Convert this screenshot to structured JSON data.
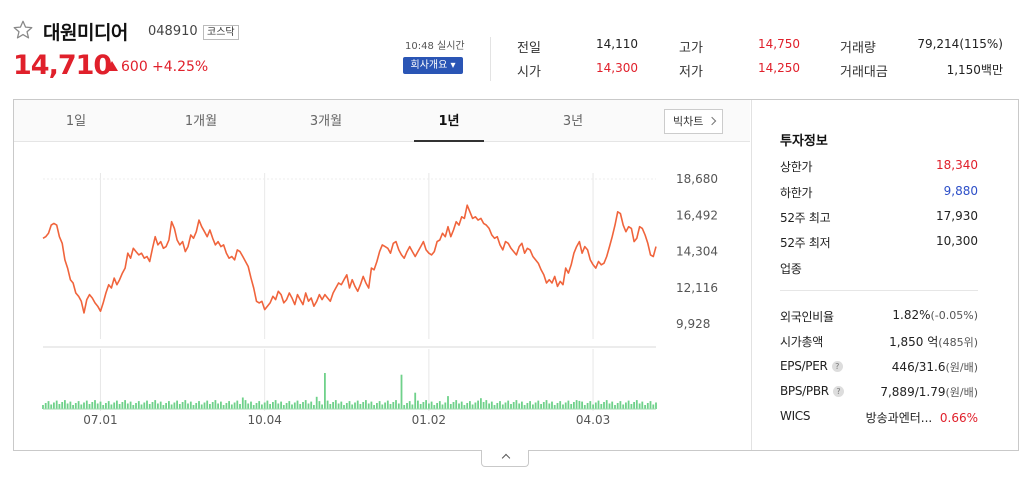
{
  "header": {
    "stock_name": "대원미디어",
    "stock_code": "048910",
    "market": "코스닥",
    "price": "14,710",
    "change": "600",
    "change_pct": "+4.25%",
    "realtime": "10:48 실시간",
    "company_button": "회사개요 ▾"
  },
  "quote": {
    "prev_close_label": "전일",
    "prev_close": "14,110",
    "open_label": "시가",
    "open": "14,300",
    "high_label": "고가",
    "high": "14,750",
    "low_label": "저가",
    "low": "14,250",
    "volume_label": "거래량",
    "volume": "79,214(115%)",
    "amount_label": "거래대금",
    "amount": "1,150백만"
  },
  "tabs": [
    {
      "label": "1일",
      "active": false
    },
    {
      "label": "1개월",
      "active": false
    },
    {
      "label": "3개월",
      "active": false
    },
    {
      "label": "1년",
      "active": true
    },
    {
      "label": "3년",
      "active": false
    }
  ],
  "bigchart_label": "빅차트",
  "info": {
    "title": "투자정보",
    "upper_limit_label": "상한가",
    "upper_limit": "18,340",
    "lower_limit_label": "하한가",
    "lower_limit": "9,880",
    "high52_label": "52주 최고",
    "high52": "17,930",
    "low52_label": "52주 최저",
    "low52": "10,300",
    "industry_label": "업종",
    "foreign_label": "외국인비율",
    "foreign_value": "1.82%",
    "foreign_change": "(-0.05%)",
    "mcap_label": "시가총액",
    "mcap_value": "1,850 억",
    "mcap_sub": "(485위)",
    "eps_label": "EPS/PER",
    "eps_value": "446/31.6",
    "eps_sub": "(원/배)",
    "bps_label": "BPS/PBR",
    "bps_value": "7,889/1.79",
    "bps_sub": "(원/배)",
    "wics_label": "WICS",
    "wics_value": "방송과엔터...",
    "wics_pct": "0.66%"
  },
  "chart_data": {
    "type": "line",
    "title": "",
    "y_ticks": [
      18680,
      16492,
      14304,
      12116,
      9928
    ],
    "ylim": [
      9928,
      18680
    ],
    "x_tick_labels": [
      "07.01",
      "10.04",
      "01.02",
      "04.03"
    ],
    "x_tick_index": [
      21,
      81,
      141,
      201
    ],
    "line_color": "#f0643c",
    "volume_color": "#6fd18a",
    "price": [
      15100,
      15200,
      15400,
      15900,
      16000,
      15900,
      15200,
      14800,
      13800,
      13300,
      12600,
      12400,
      11800,
      11600,
      11300,
      10600,
      11400,
      11700,
      11500,
      11200,
      11000,
      10700,
      11200,
      11800,
      12300,
      12100,
      12700,
      12300,
      12600,
      13000,
      13300,
      14200,
      13900,
      14500,
      14300,
      14100,
      14200,
      13900,
      14000,
      13700,
      14500,
      15200,
      14700,
      14900,
      14500,
      14600,
      15000,
      16100,
      15700,
      15000,
      14700,
      14900,
      14300,
      14600,
      15300,
      15100,
      15500,
      16200,
      15800,
      15500,
      15200,
      15600,
      15100,
      14700,
      14900,
      14600,
      14700,
      14200,
      13900,
      14000,
      13800,
      14400,
      14300,
      14000,
      13700,
      13400,
      12700,
      12100,
      11300,
      11200,
      11300,
      10800,
      11000,
      11200,
      11600,
      11400,
      11900,
      11700,
      11200,
      11400,
      11800,
      11500,
      11100,
      11700,
      11400,
      11100,
      11800,
      11300,
      11500,
      11000,
      11300,
      11700,
      11400,
      11700,
      11500,
      11300,
      11800,
      12100,
      12400,
      12300,
      12600,
      12900,
      12100,
      12600,
      12200,
      11900,
      12300,
      12800,
      12400,
      12100,
      13300,
      13200,
      13700,
      14300,
      14700,
      14600,
      14500,
      14200,
      14800,
      14900,
      14400,
      14100,
      13900,
      14300,
      14600,
      14300,
      14000,
      14300,
      14600,
      14900,
      14400,
      14200,
      14100,
      14300,
      14900,
      15000,
      15400,
      15200,
      15800,
      15200,
      15600,
      16100,
      15900,
      16400,
      16300,
      17100,
      16700,
      16300,
      16400,
      16200,
      16300,
      16000,
      15900,
      15700,
      15300,
      15100,
      15200,
      14700,
      14400,
      14900,
      14800,
      14500,
      14300,
      14100,
      14600,
      14800,
      14200,
      14500,
      14400,
      14000,
      13800,
      13600,
      13200,
      12900,
      12400,
      12600,
      12400,
      12800,
      12200,
      12500,
      12300,
      13300,
      13000,
      13500,
      14200,
      14600,
      14900,
      14200,
      14600,
      14400,
      13800,
      13500,
      13300,
      13700,
      13500,
      13600,
      14000,
      14600,
      15200,
      15900,
      16700,
      16600,
      15900,
      15500,
      15800,
      15700,
      14900,
      15100,
      15800,
      15700,
      15300,
      14800,
      14100,
      14000,
      14600
    ]
  }
}
